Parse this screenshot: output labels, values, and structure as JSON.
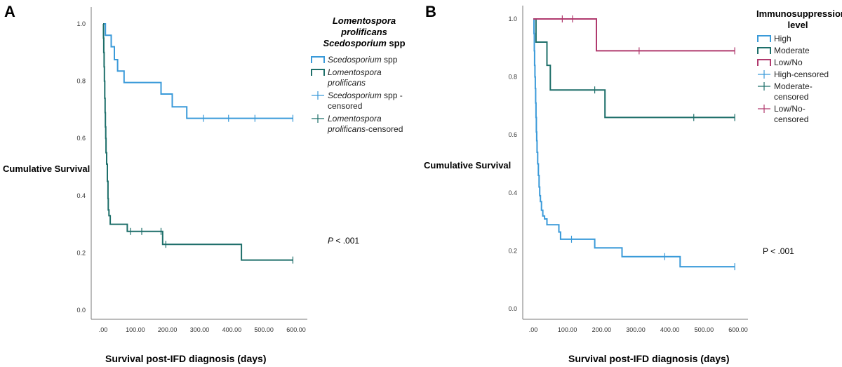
{
  "chart_data": [
    {
      "type": "line",
      "panel_label": "A",
      "title": "",
      "xlabel": "Survival post-IFD diagnosis (days)",
      "ylabel": "Cumulative Survival",
      "xlim": [
        0,
        600
      ],
      "ylim": [
        0,
        1
      ],
      "x_ticks": [
        ".00",
        "100.00",
        "200.00",
        "300.00",
        "400.00",
        "500.00",
        "600.00"
      ],
      "y_ticks": [
        "0.0",
        "0.2",
        "0.4",
        "0.6",
        "0.8",
        "1.0"
      ],
      "legend_title_line1": "Lomentospora prolificans",
      "legend_title_line2a": "Scedosporium",
      "legend_title_line2b": " spp",
      "legend": [
        {
          "label_italic": "Scedosporium",
          "label_rest": " spp",
          "kind": "line",
          "color": "#3a9ad9"
        },
        {
          "label_italic": "Lomentospora prolificans",
          "label_rest": "",
          "kind": "line",
          "color": "#1e6f6a"
        },
        {
          "label_italic": "Scedosporium",
          "label_rest": " spp - censored",
          "kind": "censor",
          "color": "#3a9ad9"
        },
        {
          "label_italic": "Lomentospora prolificans",
          "label_rest": "-censored",
          "kind": "censor",
          "color": "#1e6f6a"
        }
      ],
      "annotation_italic": "P",
      "annotation_rest": " < .001",
      "series": [
        {
          "name": "Scedosporium spp",
          "color": "#3a9ad9",
          "steps": [
            [
              0,
              1.0
            ],
            [
              7,
              0.96
            ],
            [
              25,
              0.92
            ],
            [
              35,
              0.875
            ],
            [
              45,
              0.835
            ],
            [
              65,
              0.795
            ],
            [
              180,
              0.755
            ],
            [
              215,
              0.71
            ],
            [
              260,
              0.67
            ],
            [
              590,
              0.67
            ]
          ],
          "censored": [
            [
              312,
              0.67
            ],
            [
              390,
              0.67
            ],
            [
              472,
              0.67
            ],
            [
              590,
              0.67
            ]
          ]
        },
        {
          "name": "Lomentospora prolificans",
          "color": "#1e6f6a",
          "steps": [
            [
              0,
              1.0
            ],
            [
              1,
              0.95
            ],
            [
              2,
              0.9
            ],
            [
              3,
              0.85
            ],
            [
              4,
              0.8
            ],
            [
              5,
              0.74
            ],
            [
              6,
              0.69
            ],
            [
              7,
              0.64
            ],
            [
              8,
              0.6
            ],
            [
              9,
              0.55
            ],
            [
              11,
              0.51
            ],
            [
              13,
              0.45
            ],
            [
              15,
              0.39
            ],
            [
              16,
              0.35
            ],
            [
              18,
              0.33
            ],
            [
              22,
              0.3
            ],
            [
              75,
              0.275
            ],
            [
              185,
              0.23
            ],
            [
              430,
              0.175
            ],
            [
              590,
              0.175
            ]
          ],
          "censored": [
            [
              85,
              0.275
            ],
            [
              120,
              0.275
            ],
            [
              180,
              0.275
            ],
            [
              195,
              0.23
            ],
            [
              590,
              0.175
            ]
          ]
        }
      ]
    },
    {
      "type": "line",
      "panel_label": "B",
      "title": "",
      "xlabel": "Survival post-IFD diagnosis (days)",
      "ylabel": "Cumulative Survival",
      "xlim": [
        0,
        600
      ],
      "ylim": [
        0,
        1
      ],
      "x_ticks": [
        ".00",
        "100.00",
        "200.00",
        "300.00",
        "400.00",
        "500.00",
        "600.00"
      ],
      "y_ticks": [
        "0.0",
        "0.2",
        "0.4",
        "0.6",
        "0.8",
        "1.0"
      ],
      "legend_title_line1": "Immunosuppression",
      "legend_title_line2": "level",
      "legend": [
        {
          "label": "High",
          "kind": "line",
          "color": "#3a9ad9"
        },
        {
          "label": "Moderate",
          "kind": "line",
          "color": "#1e6f6a"
        },
        {
          "label": "Low/No",
          "kind": "line",
          "color": "#b03a6e"
        },
        {
          "label": "High-censored",
          "kind": "censor",
          "color": "#3a9ad9"
        },
        {
          "label": "Moderate-censored",
          "kind": "censor",
          "color": "#1e6f6a"
        },
        {
          "label": "Low/No-censored",
          "kind": "censor",
          "color": "#b03a6e"
        }
      ],
      "annotation": "P < .001",
      "series": [
        {
          "name": "High",
          "color": "#3a9ad9",
          "steps": [
            [
              0,
              1.0
            ],
            [
              2,
              0.95
            ],
            [
              3,
              0.89
            ],
            [
              4,
              0.84
            ],
            [
              5,
              0.8
            ],
            [
              6,
              0.76
            ],
            [
              7,
              0.71
            ],
            [
              8,
              0.66
            ],
            [
              9,
              0.61
            ],
            [
              10,
              0.58
            ],
            [
              11,
              0.54
            ],
            [
              13,
              0.5
            ],
            [
              15,
              0.46
            ],
            [
              17,
              0.42
            ],
            [
              19,
              0.39
            ],
            [
              21,
              0.37
            ],
            [
              24,
              0.34
            ],
            [
              28,
              0.32
            ],
            [
              33,
              0.31
            ],
            [
              40,
              0.29
            ],
            [
              75,
              0.265
            ],
            [
              80,
              0.24
            ],
            [
              180,
              0.21
            ],
            [
              260,
              0.18
            ],
            [
              430,
              0.145
            ],
            [
              590,
              0.145
            ]
          ],
          "censored": [
            [
              112,
              0.24
            ],
            [
              385,
              0.18
            ],
            [
              590,
              0.145
            ]
          ]
        },
        {
          "name": "Moderate",
          "color": "#1e6f6a",
          "steps": [
            [
              0,
              1.0
            ],
            [
              8,
              0.92
            ],
            [
              40,
              0.84
            ],
            [
              50,
              0.755
            ],
            [
              210,
              0.66
            ],
            [
              590,
              0.66
            ]
          ],
          "censored": [
            [
              180,
              0.755
            ],
            [
              470,
              0.66
            ],
            [
              590,
              0.66
            ]
          ]
        },
        {
          "name": "Low/No",
          "color": "#b03a6e",
          "steps": [
            [
              0,
              1.0
            ],
            [
              185,
              0.89
            ],
            [
              590,
              0.89
            ]
          ],
          "censored": [
            [
              85,
              1.0
            ],
            [
              115,
              1.0
            ],
            [
              310,
              0.89
            ],
            [
              590,
              0.89
            ]
          ]
        }
      ]
    }
  ]
}
